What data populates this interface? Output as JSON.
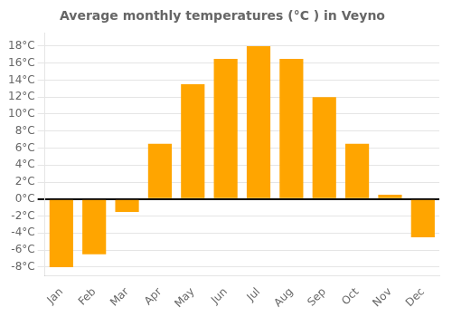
{
  "chart_data": {
    "type": "bar",
    "title": "Average monthly temperatures (°C ) in Veyno",
    "categories": [
      "Jan",
      "Feb",
      "Mar",
      "Apr",
      "May",
      "Jun",
      "Jul",
      "Aug",
      "Sep",
      "Oct",
      "Nov",
      "Dec"
    ],
    "values": [
      -8,
      -6.5,
      -1.5,
      6.5,
      13.5,
      16.5,
      18,
      16.5,
      12,
      6.5,
      0.5,
      -4.5
    ],
    "color": "#FFA500",
    "ylim": [
      -9,
      19.5
    ],
    "yticks": [
      {
        "value": -8,
        "label": "-8°C"
      },
      {
        "value": -6,
        "label": "-6°C"
      },
      {
        "value": -4,
        "label": "-4°C"
      },
      {
        "value": -2,
        "label": "-2°C"
      },
      {
        "value": 0,
        "label": "0°C"
      },
      {
        "value": 2,
        "label": "2°C"
      },
      {
        "value": 4,
        "label": "4°C"
      },
      {
        "value": 6,
        "label": "6°C"
      },
      {
        "value": 8,
        "label": "8°C"
      },
      {
        "value": 10,
        "label": "10°C"
      },
      {
        "value": 12,
        "label": "12°C"
      },
      {
        "value": 14,
        "label": "14°C"
      },
      {
        "value": 16,
        "label": "16°C"
      },
      {
        "value": 18,
        "label": "18°C"
      }
    ],
    "grid": true
  }
}
